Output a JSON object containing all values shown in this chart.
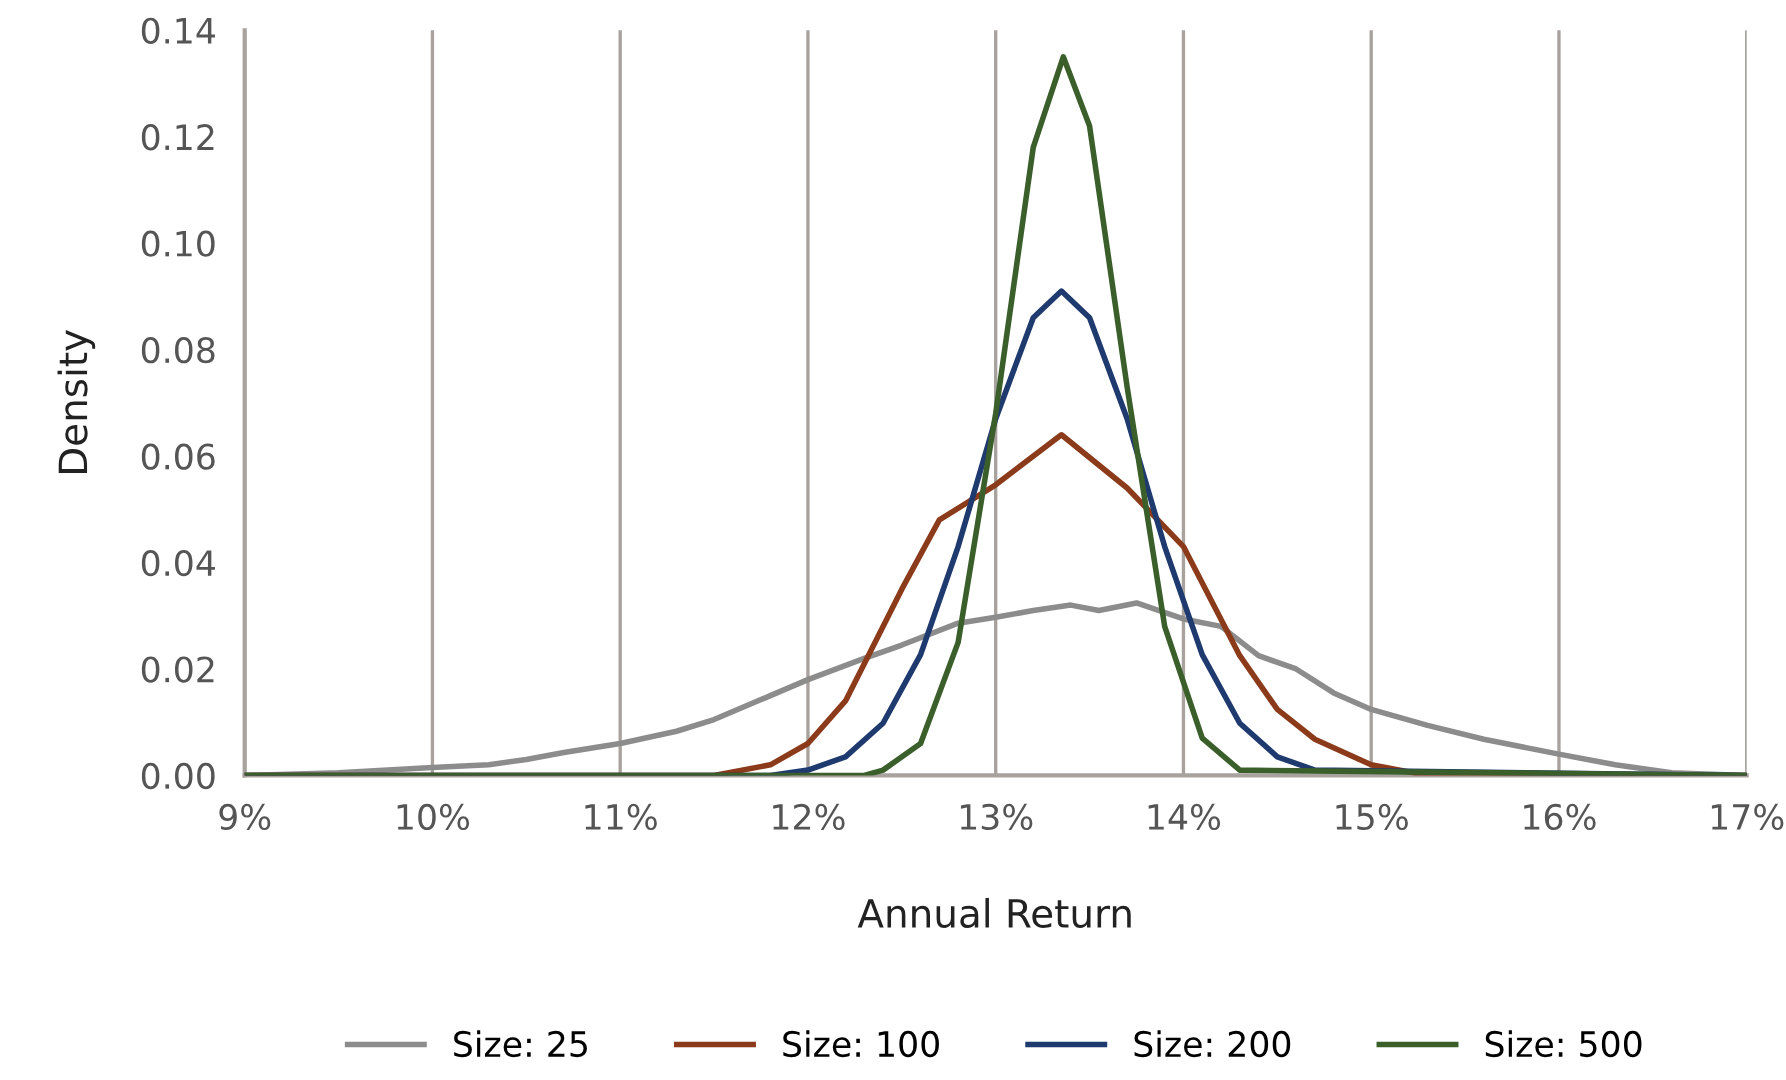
{
  "chart_data": {
    "type": "line",
    "xlabel": "Annual Return",
    "ylabel": "Density",
    "xlim": [
      9,
      17
    ],
    "ylim": [
      0,
      0.14
    ],
    "xticks": [
      {
        "value": 9,
        "label": "9%"
      },
      {
        "value": 10,
        "label": "10%"
      },
      {
        "value": 11,
        "label": "11%"
      },
      {
        "value": 12,
        "label": "12%"
      },
      {
        "value": 13,
        "label": "13%"
      },
      {
        "value": 14,
        "label": "14%"
      },
      {
        "value": 15,
        "label": "15%"
      },
      {
        "value": 16,
        "label": "16%"
      },
      {
        "value": 17,
        "label": "17%"
      }
    ],
    "yticks": [
      {
        "value": 0,
        "label": "0.00"
      },
      {
        "value": 0.02,
        "label": "0.02"
      },
      {
        "value": 0.04,
        "label": "0.04"
      },
      {
        "value": 0.06,
        "label": "0.06"
      },
      {
        "value": 0.08,
        "label": "0.08"
      },
      {
        "value": 0.1,
        "label": "0.10"
      },
      {
        "value": 0.12,
        "label": "0.12"
      },
      {
        "value": 0.14,
        "label": "0.14"
      }
    ],
    "grid": "x",
    "legend": "bottom",
    "marker": "none",
    "line_style": "solid",
    "series": [
      {
        "name": "Size: 25",
        "color": "#8c8c8c",
        "x": [
          9,
          9.5,
          10,
          10.3,
          10.5,
          10.7,
          11,
          11.3,
          11.5,
          11.8,
          12,
          12.3,
          12.5,
          12.8,
          13,
          13.2,
          13.4,
          13.55,
          13.75,
          14,
          14.2,
          14.4,
          14.6,
          14.8,
          15,
          15.3,
          15.6,
          16,
          16.3,
          16.6,
          17
        ],
        "values": [
          0,
          0.0005,
          0.0015,
          0.002,
          0.003,
          0.0043,
          0.006,
          0.0083,
          0.0105,
          0.015,
          0.018,
          0.022,
          0.0245,
          0.0286,
          0.0297,
          0.031,
          0.032,
          0.031,
          0.0324,
          0.0294,
          0.028,
          0.0225,
          0.02,
          0.0155,
          0.0124,
          0.0094,
          0.0068,
          0.004,
          0.002,
          0.0005,
          0
        ]
      },
      {
        "name": "Size: 100",
        "color": "#8b3a1a",
        "x": [
          9,
          11.5,
          11.8,
          12,
          12.2,
          12.5,
          12.7,
          13,
          13.35,
          13.7,
          14,
          14.3,
          14.5,
          14.7,
          15,
          15.3,
          17
        ],
        "values": [
          0,
          0,
          0.002,
          0.006,
          0.014,
          0.035,
          0.048,
          0.0546,
          0.064,
          0.054,
          0.043,
          0.0225,
          0.0124,
          0.0068,
          0.002,
          0,
          0
        ]
      },
      {
        "name": "Size: 200",
        "color": "#1f3a6e",
        "x": [
          9,
          11.8,
          12,
          12.2,
          12.4,
          12.6,
          12.8,
          13,
          13.2,
          13.35,
          13.5,
          13.7,
          13.9,
          14.1,
          14.3,
          14.5,
          14.7,
          17
        ],
        "values": [
          0,
          0,
          0.001,
          0.0035,
          0.0098,
          0.0227,
          0.043,
          0.067,
          0.086,
          0.091,
          0.086,
          0.067,
          0.043,
          0.0227,
          0.0098,
          0.0035,
          0.001,
          0
        ]
      },
      {
        "name": "Size: 500",
        "color": "#3a5f2a",
        "x": [
          9,
          12.3,
          12.4,
          12.6,
          12.8,
          13,
          13.2,
          13.36,
          13.5,
          13.7,
          13.9,
          14.1,
          14.3,
          17
        ],
        "values": [
          0,
          0,
          0.001,
          0.006,
          0.025,
          0.068,
          0.118,
          0.135,
          0.122,
          0.073,
          0.028,
          0.007,
          0.001,
          0
        ]
      }
    ]
  }
}
